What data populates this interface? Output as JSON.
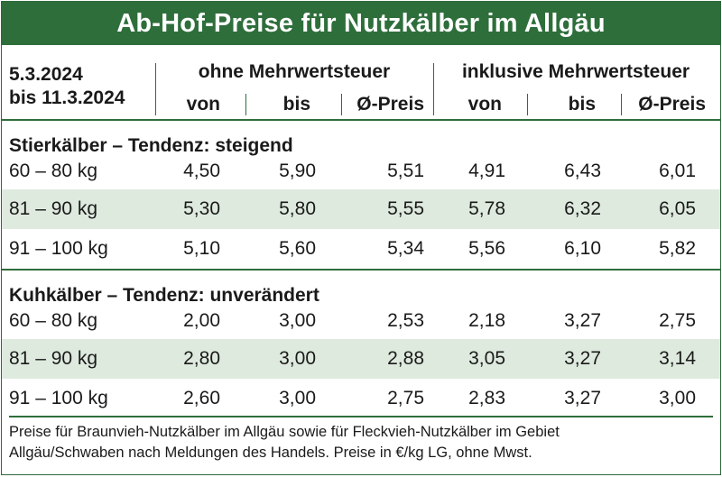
{
  "title": "Ab-Hof-Preise für Nutzkälber im Allgäu",
  "header": {
    "date_from": "5.3.2024",
    "date_to": "bis 11.3.2024",
    "group_excl": "ohne Mehrwertsteuer",
    "group_incl": "inklusive Mehrwertsteuer",
    "col_from": "von",
    "col_to": "bis",
    "col_avg": "Ø-Preis"
  },
  "sections": [
    {
      "title": "Stierkälber – Tendenz: steigend",
      "rows": [
        {
          "label": "60 – 80 kg",
          "values": [
            "4,50",
            "5,90",
            "5,51",
            "4,91",
            "6,43",
            "6,01"
          ]
        },
        {
          "label": "81 – 90 kg",
          "values": [
            "5,30",
            "5,80",
            "5,55",
            "5,78",
            "6,32",
            "6,05"
          ]
        },
        {
          "label": "91 – 100 kg",
          "values": [
            "5,10",
            "5,60",
            "5,34",
            "5,56",
            "6,10",
            "5,82"
          ]
        }
      ]
    },
    {
      "title": "Kuhkälber – Tendenz: unverändert",
      "rows": [
        {
          "label": "60 – 80 kg",
          "values": [
            "2,00",
            "3,00",
            "2,53",
            "2,18",
            "3,27",
            "2,75"
          ]
        },
        {
          "label": "81 – 90 kg",
          "values": [
            "2,80",
            "3,00",
            "2,88",
            "3,05",
            "3,27",
            "3,14"
          ]
        },
        {
          "label": "91 – 100 kg",
          "values": [
            "2,60",
            "3,00",
            "2,75",
            "2,83",
            "3,27",
            "3,00"
          ]
        }
      ]
    }
  ],
  "footer": {
    "line1": "Preise für Braunvieh-Nutzkälber im Allgäu sowie für Fleckvieh-Nutzkälber im Gebiet",
    "line2": "Allgäu/Schwaben nach Meldungen des Handels. Preise in €/kg LG, ohne Mwst."
  },
  "colors": {
    "accent": "#2e6e3b",
    "row_shade": "#dfeadf"
  }
}
